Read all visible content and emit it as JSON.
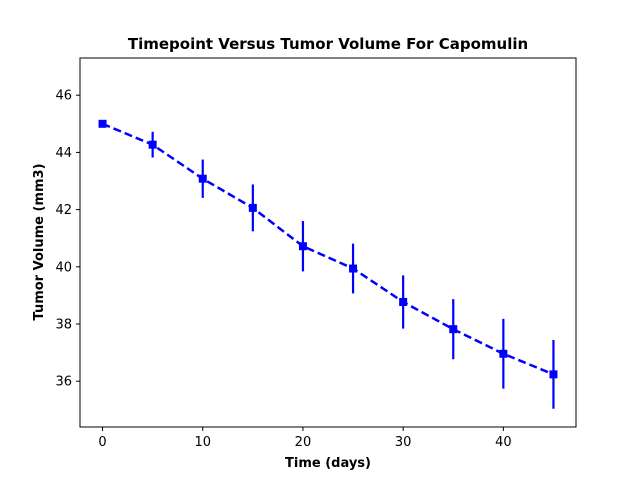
{
  "chart_data": {
    "type": "line",
    "title": "Timepoint Versus Tumor Volume For Capomulin",
    "xlabel": "Time (days)",
    "ylabel": "Tumor Volume (mm3)",
    "xlim": [
      -2.25,
      47.25
    ],
    "ylim": [
      34.4,
      47.3
    ],
    "xticks": [
      0,
      10,
      20,
      30,
      40
    ],
    "yticks": [
      36,
      38,
      40,
      42,
      44,
      46
    ],
    "grid": false,
    "series": [
      {
        "color": "#0000ff",
        "line_style": "dashed",
        "marker": "square",
        "x": [
          0,
          5,
          10,
          15,
          20,
          25,
          30,
          35,
          40,
          45
        ],
        "y": [
          45.0,
          44.27,
          43.08,
          42.06,
          40.72,
          39.94,
          38.77,
          37.82,
          36.96,
          36.24
        ],
        "error": [
          0.0,
          0.45,
          0.67,
          0.82,
          0.88,
          0.87,
          0.93,
          1.05,
          1.22,
          1.2
        ]
      }
    ]
  }
}
